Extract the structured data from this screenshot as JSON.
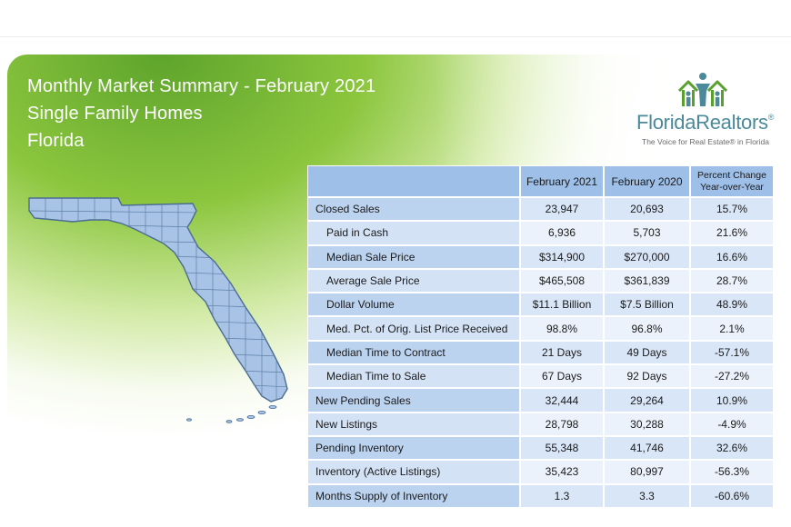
{
  "header": {
    "title_line1": "Monthly Market Summary - February 2021",
    "title_line2": "Single Family Homes",
    "title_line3": "Florida"
  },
  "logo": {
    "brand_part1": "Florida",
    "brand_part2": "Realtors",
    "registered": "®",
    "tagline": "The Voice for Real Estate® in Florida",
    "icon_name": "houses-people-icon",
    "colors": {
      "green": "#5aa02c",
      "teal": "#4a8a9a"
    }
  },
  "map": {
    "icon_name": "florida-county-map",
    "fill_color": "#a8c3e6"
  },
  "table": {
    "columns": [
      "",
      "February 2021",
      "February 2020",
      "Percent Change\nYear-over-Year"
    ],
    "change_header_line1": "Percent Change",
    "change_header_line2": "Year-over-Year",
    "rows": [
      {
        "label": "Closed Sales",
        "feb2021": "23,947",
        "feb2020": "20,693",
        "change": "15.7%"
      },
      {
        "label": "Paid in Cash",
        "feb2021": "6,936",
        "feb2020": "5,703",
        "change": "21.6%"
      },
      {
        "label": "Median Sale Price",
        "feb2021": "$314,900",
        "feb2020": "$270,000",
        "change": "16.6%"
      },
      {
        "label": "Average Sale Price",
        "feb2021": "$465,508",
        "feb2020": "$361,839",
        "change": "28.7%"
      },
      {
        "label": "Dollar Volume",
        "feb2021": "$11.1 Billion",
        "feb2020": "$7.5 Billion",
        "change": "48.9%"
      },
      {
        "label": "Med. Pct. of Orig. List Price Received",
        "feb2021": "98.8%",
        "feb2020": "96.8%",
        "change": "2.1%"
      },
      {
        "label": "Median Time to Contract",
        "feb2021": "21 Days",
        "feb2020": "49 Days",
        "change": "-57.1%"
      },
      {
        "label": "Median Time to Sale",
        "feb2021": "67 Days",
        "feb2020": "92 Days",
        "change": "-27.2%"
      },
      {
        "label": "New Pending Sales",
        "feb2021": "32,444",
        "feb2020": "29,264",
        "change": "10.9%"
      },
      {
        "label": "New Listings",
        "feb2021": "28,798",
        "feb2020": "30,288",
        "change": "-4.9%"
      },
      {
        "label": "Pending Inventory",
        "feb2021": "55,348",
        "feb2020": "41,746",
        "change": "32.6%"
      },
      {
        "label": "Inventory (Active Listings)",
        "feb2021": "35,423",
        "feb2020": "80,997",
        "change": "-56.3%"
      },
      {
        "label": "Months Supply of Inventory",
        "feb2021": "1.3",
        "feb2020": "3.3",
        "change": "-60.6%"
      }
    ]
  }
}
